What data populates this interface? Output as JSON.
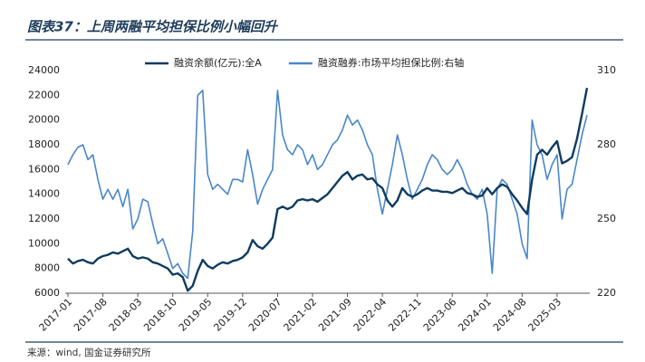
{
  "chart_data": {
    "type": "line",
    "title": "图表37：上周两融平均担保比例小幅回升",
    "source": "来源：wind, 国金证券研究所",
    "categories": [
      "2017-01",
      null,
      null,
      null,
      null,
      null,
      null,
      "2017-08",
      null,
      null,
      null,
      null,
      null,
      null,
      "2018-03",
      null,
      null,
      null,
      null,
      null,
      null,
      "2018-10",
      null,
      null,
      null,
      null,
      null,
      null,
      "2019-05",
      null,
      null,
      null,
      null,
      null,
      null,
      "2019-12",
      null,
      null,
      null,
      null,
      null,
      null,
      "2020-07",
      null,
      null,
      null,
      null,
      null,
      null,
      "2021-02",
      null,
      null,
      null,
      null,
      null,
      null,
      "2021-09",
      null,
      null,
      null,
      null,
      null,
      null,
      "2022-04",
      null,
      null,
      null,
      null,
      null,
      null,
      "2022-11",
      null,
      null,
      null,
      null,
      null,
      null,
      "2023-06",
      null,
      null,
      null,
      null,
      null,
      null,
      "2024-01",
      null,
      null,
      null,
      null,
      null,
      null,
      "2024-08",
      null,
      null,
      null,
      null,
      null,
      null,
      "2025-03",
      null,
      null,
      null,
      null,
      null,
      null
    ],
    "series": [
      {
        "name": "融资余额(亿元):全A",
        "color": "#0f3b5f",
        "axis": "y",
        "values": [
          8800,
          8400,
          8600,
          8700,
          8500,
          8400,
          8800,
          9000,
          9100,
          9300,
          9200,
          9400,
          9600,
          9000,
          8800,
          8900,
          8800,
          8500,
          8400,
          8200,
          8000,
          7500,
          7600,
          7300,
          6200,
          6600,
          7800,
          8700,
          8200,
          8000,
          8300,
          8500,
          8400,
          8600,
          8700,
          8900,
          9300,
          10300,
          9800,
          9600,
          10000,
          10500,
          12800,
          13000,
          12800,
          13000,
          13500,
          13600,
          13500,
          13600,
          13400,
          13700,
          14000,
          14500,
          15000,
          15500,
          15800,
          15200,
          15500,
          15600,
          15200,
          15300,
          14800,
          14500,
          13500,
          13000,
          13500,
          14500,
          14000,
          13800,
          14000,
          14300,
          14500,
          14300,
          14300,
          14200,
          14200,
          14100,
          14300,
          14500,
          14100,
          14000,
          13800,
          13900,
          14500,
          14000,
          14500,
          14800,
          14600,
          14000,
          13500,
          12900,
          12400,
          15200,
          17200,
          17600,
          17200,
          17800,
          18300,
          16500,
          16700,
          17000,
          18500,
          20500,
          22600
        ]
      },
      {
        "name": "融资融券:市场平均担保比例:右轴",
        "color": "#4a87c8",
        "axis": "y2",
        "values": [
          272,
          276,
          279,
          280,
          274,
          276,
          266,
          258,
          262,
          258,
          262,
          255,
          262,
          246,
          250,
          258,
          257,
          248,
          240,
          242,
          236,
          230,
          232,
          228,
          226,
          245,
          300,
          302,
          268,
          262,
          264,
          262,
          260,
          266,
          266,
          265,
          278,
          268,
          256,
          262,
          266,
          270,
          302,
          284,
          278,
          276,
          280,
          278,
          272,
          276,
          270,
          272,
          276,
          280,
          282,
          286,
          292,
          288,
          290,
          286,
          280,
          276,
          262,
          252,
          262,
          272,
          284,
          276,
          266,
          258,
          262,
          266,
          272,
          276,
          274,
          270,
          268,
          270,
          274,
          270,
          264,
          260,
          258,
          262,
          252,
          228,
          262,
          266,
          264,
          258,
          252,
          240,
          234,
          290,
          280,
          276,
          266,
          272,
          276,
          250,
          262,
          264,
          274,
          284,
          292
        ]
      }
    ],
    "ylim": [
      6000,
      24000
    ],
    "yticks": [
      6000,
      8000,
      10000,
      12000,
      14000,
      16000,
      18000,
      20000,
      22000,
      24000
    ],
    "y2lim": [
      220,
      310
    ],
    "y2ticks": [
      220,
      250,
      280,
      310
    ],
    "grid": false,
    "legend": "top"
  }
}
